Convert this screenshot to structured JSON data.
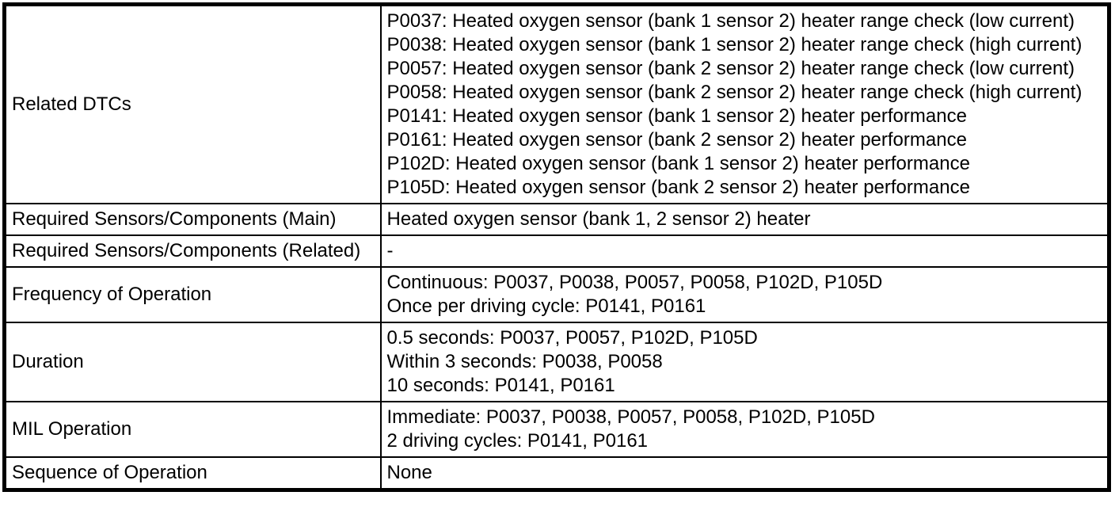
{
  "table": {
    "rows": [
      {
        "label": "Related DTCs",
        "lines": [
          "P0037: Heated oxygen sensor (bank 1 sensor 2) heater range check (low current)",
          "P0038: Heated oxygen sensor (bank 1 sensor 2) heater range check (high current)",
          "P0057: Heated oxygen sensor (bank 2 sensor 2) heater range check (low current)",
          "P0058: Heated oxygen sensor (bank 2 sensor 2) heater range check (high current)",
          "P0141: Heated oxygen sensor (bank 1 sensor 2) heater performance",
          "P0161: Heated oxygen sensor (bank 2 sensor 2) heater performance",
          "P102D: Heated oxygen sensor (bank 1 sensor 2) heater performance",
          "P105D: Heated oxygen sensor (bank 2 sensor 2) heater performance"
        ]
      },
      {
        "label": "Required Sensors/Components (Main)",
        "lines": [
          "Heated oxygen sensor (bank 1, 2 sensor 2) heater"
        ]
      },
      {
        "label": "Required Sensors/Components (Related)",
        "lines": [
          "-"
        ]
      },
      {
        "label": "Frequency of Operation",
        "lines": [
          "Continuous: P0037, P0038, P0057, P0058, P102D, P105D",
          "Once per driving cycle: P0141, P0161"
        ]
      },
      {
        "label": "Duration",
        "lines": [
          "0.5 seconds: P0037, P0057, P102D, P105D",
          "Within 3 seconds: P0038, P0058",
          "10 seconds: P0141, P0161"
        ]
      },
      {
        "label": "MIL Operation",
        "lines": [
          "Immediate: P0037, P0038, P0057, P0058, P102D, P105D",
          "2 driving cycles: P0141, P0161"
        ]
      },
      {
        "label": "Sequence of Operation",
        "lines": [
          "None"
        ]
      }
    ]
  }
}
